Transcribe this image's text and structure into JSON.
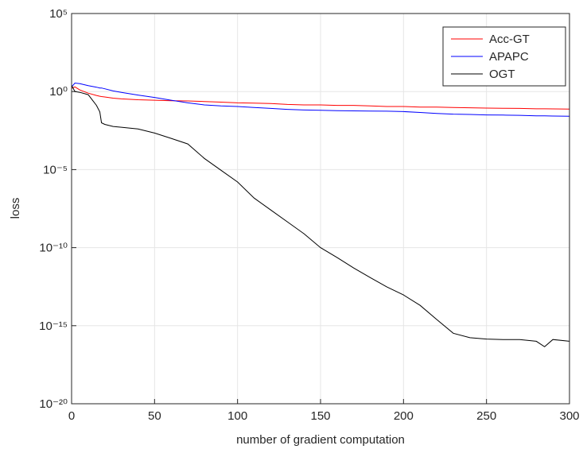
{
  "chart_data": {
    "type": "line",
    "xlabel": "number of gradient computation",
    "ylabel": "loss",
    "x": [
      0,
      2,
      5,
      10,
      15,
      17,
      18,
      20,
      25,
      30,
      40,
      50,
      60,
      70,
      80,
      90,
      100,
      110,
      120,
      130,
      140,
      150,
      160,
      170,
      180,
      190,
      200,
      210,
      220,
      230,
      240,
      250,
      260,
      270,
      280,
      285,
      290,
      300
    ],
    "series": [
      {
        "name": "Acc-GT",
        "color": "#ff0000",
        "values": [
          1.6,
          2.0,
          1.26,
          0.79,
          0.56,
          0.5,
          0.48,
          0.45,
          0.38,
          0.34,
          0.3,
          0.28,
          0.26,
          0.25,
          0.23,
          0.21,
          0.19,
          0.18,
          0.17,
          0.15,
          0.14,
          0.14,
          0.13,
          0.13,
          0.12,
          0.11,
          0.11,
          0.1,
          0.1,
          0.095,
          0.091,
          0.087,
          0.085,
          0.083,
          0.079,
          0.079,
          0.078,
          0.076
        ]
      },
      {
        "name": "APAPC",
        "color": "#0000ff",
        "values": [
          2.0,
          3.5,
          3.2,
          2.4,
          1.9,
          1.7,
          1.7,
          1.5,
          1.1,
          0.89,
          0.6,
          0.42,
          0.28,
          0.19,
          0.14,
          0.12,
          0.11,
          0.095,
          0.083,
          0.072,
          0.066,
          0.063,
          0.06,
          0.058,
          0.056,
          0.055,
          0.052,
          0.046,
          0.04,
          0.036,
          0.034,
          0.032,
          0.031,
          0.03,
          0.028,
          0.028,
          0.027,
          0.026
        ]
      },
      {
        "name": "OGT",
        "color": "#000000",
        "values": [
          2.5,
          1.0,
          0.89,
          0.63,
          0.13,
          0.05,
          0.01,
          0.0079,
          0.0058,
          0.0052,
          0.004,
          0.0022,
          0.001,
          0.00044,
          5.2e-05,
          9.1e-06,
          1.6e-06,
          1.5e-07,
          2.6e-08,
          4.5e-09,
          7.9e-10,
          1e-10,
          2.3e-11,
          5e-12,
          1.2e-12,
          3e-13,
          9.3e-14,
          2e-14,
          2.5e-15,
          3.3e-16,
          1.7e-16,
          1.4e-16,
          1.3e-16,
          1.3e-16,
          1e-16,
          4.5e-17,
          1.3e-16,
          1e-16
        ]
      }
    ],
    "xlim": [
      0,
      300
    ],
    "xticks": [
      0,
      50,
      100,
      150,
      200,
      250,
      300
    ],
    "ylim": [
      1e-20,
      100000.0
    ],
    "ylog": true,
    "yticks": [
      {
        "value": 1e-20,
        "label": "10⁻²⁰"
      },
      {
        "value": 1e-15,
        "label": "10⁻¹⁵"
      },
      {
        "value": 1e-10,
        "label": "10⁻¹⁰"
      },
      {
        "value": 1e-05,
        "label": "10⁻⁵"
      },
      {
        "value": 1,
        "label": "10⁰"
      },
      {
        "value": 100000.0,
        "label": "10⁵"
      }
    ],
    "grid": true,
    "legend": "top-right"
  }
}
